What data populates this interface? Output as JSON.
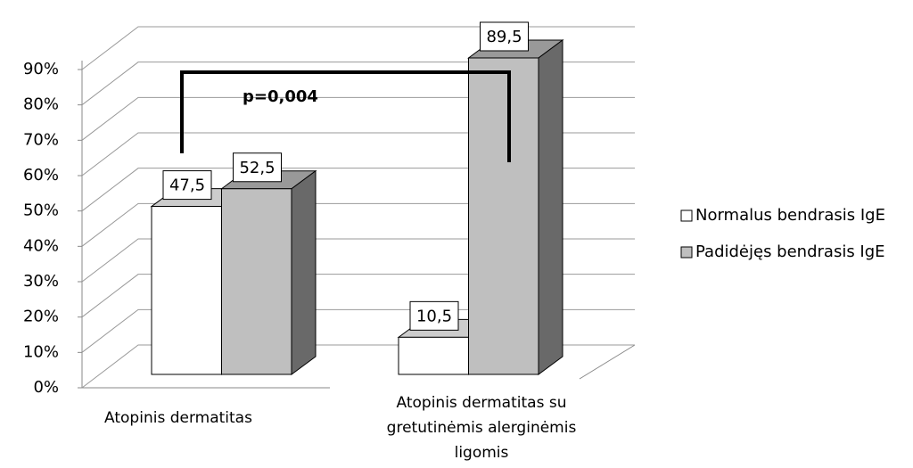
{
  "chart_data": {
    "type": "bar3d",
    "annotation": "p=0,004",
    "categories": [
      "Atopinis dermatitas",
      "Atopinis dermatitas su gretutinėmis alerginėmis ligomis"
    ],
    "series": [
      {
        "name": "Normalus bendrasis IgE",
        "color": "#ffffff",
        "values": [
          47.5,
          10.5
        ],
        "value_labels": [
          "47,5",
          "10,5"
        ]
      },
      {
        "name": "Padidėjęs bendrasis IgE",
        "color": "#bfbfbf",
        "values": [
          52.5,
          89.5
        ],
        "value_labels": [
          "52,5",
          "89,5"
        ]
      }
    ],
    "ylim": [
      0,
      90
    ],
    "yticks": [
      {
        "value": 0,
        "label": "0%"
      },
      {
        "value": 10,
        "label": "10%"
      },
      {
        "value": 20,
        "label": "20%"
      },
      {
        "value": 30,
        "label": "30%"
      },
      {
        "value": 40,
        "label": "40%"
      },
      {
        "value": 50,
        "label": "50%"
      },
      {
        "value": 60,
        "label": "60%"
      },
      {
        "value": 70,
        "label": "70%"
      },
      {
        "value": 80,
        "label": "80%"
      },
      {
        "value": 90,
        "label": "90%"
      }
    ],
    "grid": true
  }
}
